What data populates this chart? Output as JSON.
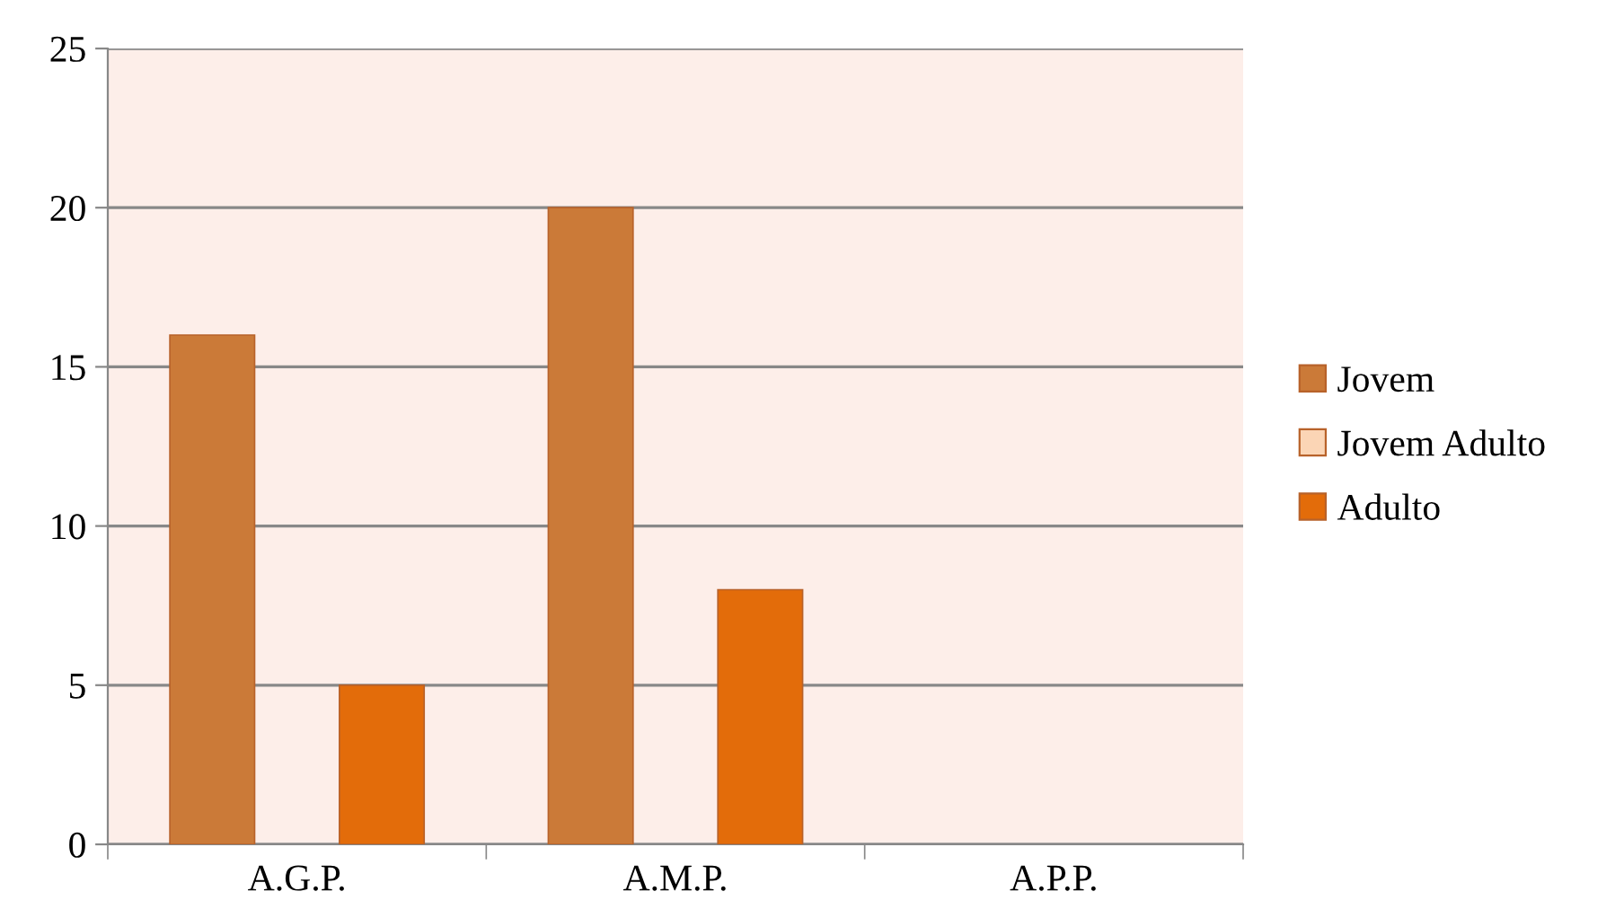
{
  "chart_data": {
    "type": "bar",
    "categories": [
      "A.G.P.",
      "A.M.P.",
      "A.P.P."
    ],
    "series": [
      {
        "name": "Jovem",
        "color": "#cb7a38",
        "values": [
          16,
          20,
          0
        ]
      },
      {
        "name": "Jovem Adulto",
        "color": "#fbd5b5",
        "values": [
          0,
          0,
          0
        ]
      },
      {
        "name": "Adulto",
        "color": "#e36c0a",
        "values": [
          5,
          8,
          0
        ]
      }
    ],
    "ylim": [
      0,
      25
    ],
    "yticks": [
      0,
      5,
      10,
      15,
      20,
      25
    ],
    "grid": "y",
    "legend": "right"
  }
}
